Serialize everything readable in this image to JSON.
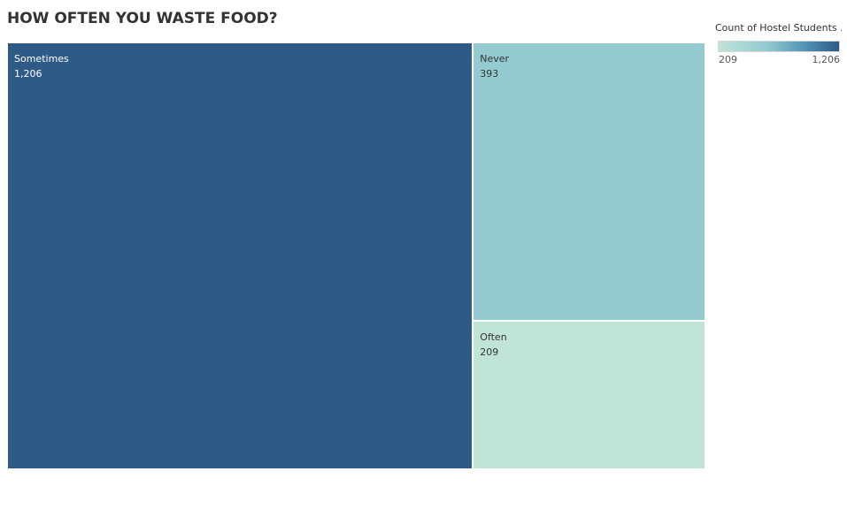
{
  "chart_data": {
    "type": "treemap",
    "title": "HOW OFTEN YOU WASTE FOOD?",
    "items": [
      {
        "label": "Sometimes",
        "value": 1206,
        "value_text": "1,206",
        "color": "#2d5a87",
        "text_color": "#ffffff"
      },
      {
        "label": "Never",
        "value": 393,
        "value_text": "393",
        "color": "#93cbd0",
        "text_color": "#333333"
      },
      {
        "label": "Often",
        "value": 209,
        "value_text": "209",
        "color": "#c0e4d8",
        "text_color": "#333333"
      }
    ],
    "legend": {
      "title": "Count of Hostel Students ...",
      "min_label": "209",
      "max_label": "1,206",
      "min_color": "#c0e4d8",
      "max_color": "#2d5a87",
      "position": "top-right"
    }
  }
}
